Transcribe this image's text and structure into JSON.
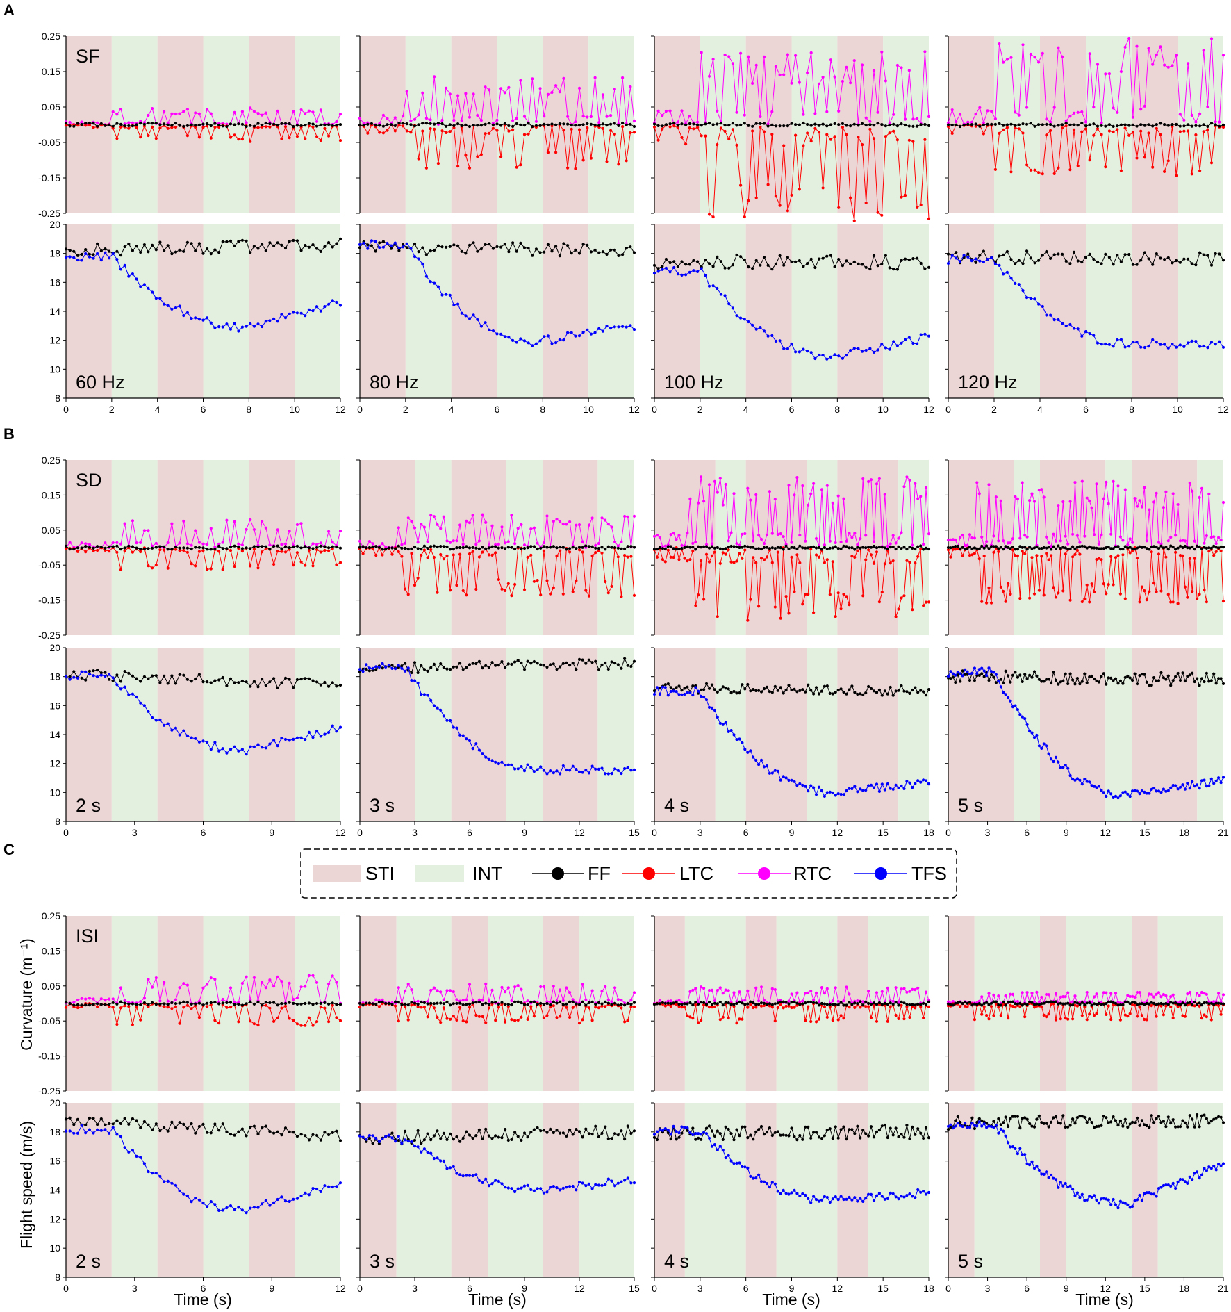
{
  "panels": [
    {
      "letter": "A",
      "row_tag": "SF"
    },
    {
      "letter": "B",
      "row_tag": "SD"
    },
    {
      "letter": "C",
      "row_tag": "ISI"
    }
  ],
  "legend": {
    "items": [
      {
        "label": "STI",
        "kind": "patch",
        "color": "#ecd5d5"
      },
      {
        "label": "INT",
        "kind": "patch",
        "color": "#e3f0df"
      },
      {
        "label": "FF",
        "kind": "line",
        "color": "#000000"
      },
      {
        "label": "LTC",
        "kind": "line",
        "color": "#ff0000"
      },
      {
        "label": "RTC",
        "kind": "line",
        "color": "#ff00ff"
      },
      {
        "label": "TFS",
        "kind": "line",
        "color": "#0000ff"
      }
    ]
  },
  "axis_labels": {
    "curvature": "Curvature (m⁻¹)",
    "speed": "Flight speed (m/s)",
    "time": "Time (s)"
  },
  "chart_data": {
    "type": "line",
    "curvature_ticks": [
      -0.25,
      -0.15,
      -0.05,
      0.05,
      0.15,
      0.25
    ],
    "curvature_tick_labels": [
      "-0.25",
      "-0.15",
      "-0.05",
      "0.05",
      "0.15",
      "0.25"
    ],
    "speed_ticks": [
      8,
      10,
      12,
      14,
      16,
      18,
      20
    ],
    "curvature_ylim": [
      -0.25,
      0.25
    ],
    "speed_ylim": [
      8,
      20
    ],
    "series_colors": {
      "FF": "#000000",
      "LTC": "#ff0000",
      "RTC": "#ff00ff",
      "TFS": "#0000ff"
    },
    "rows": [
      {
        "name": "SF",
        "subplots": [
          {
            "label": "60 Hz",
            "xmax": 12,
            "xticks": [
              0,
              2,
              4,
              6,
              8,
              10,
              12
            ],
            "stimuli": [
              [
                0,
                2
              ],
              [
                4,
                6
              ],
              [
                8,
                10
              ]
            ],
            "amp_rtc": 0.03,
            "amp_ltc": 0.03,
            "ff_start": 18.2,
            "ff_end": 18.6,
            "ff_noise": 0.45,
            "tfs_start": 17.8,
            "tfs_min": 12.9,
            "tfs_end": 14.6,
            "n": 70,
            "seed": 11
          },
          {
            "label": "80 Hz",
            "xmax": 12,
            "xticks": [
              0,
              2,
              4,
              6,
              8,
              10,
              12
            ],
            "stimuli": [
              [
                0,
                2
              ],
              [
                4,
                6
              ],
              [
                8,
                10
              ]
            ],
            "amp_rtc": 0.09,
            "amp_ltc": 0.08,
            "ff_start": 18.4,
            "ff_end": 18.2,
            "ff_noise": 0.45,
            "tfs_start": 18.6,
            "tfs_min": 11.9,
            "tfs_end": 13.0,
            "n": 70,
            "seed": 23
          },
          {
            "label": "100 Hz",
            "xmax": 12,
            "xticks": [
              0,
              2,
              4,
              6,
              8,
              10,
              12
            ],
            "stimuli": [
              [
                0,
                2
              ],
              [
                4,
                6
              ],
              [
                8,
                10
              ]
            ],
            "amp_rtc": 0.13,
            "amp_ltc": 0.17,
            "ff_start": 17.4,
            "ff_end": 17.4,
            "ff_noise": 0.5,
            "tfs_start": 16.8,
            "tfs_min": 10.9,
            "tfs_end": 12.2,
            "n": 70,
            "seed": 37
          },
          {
            "label": "120 Hz",
            "xmax": 12,
            "xticks": [
              0,
              2,
              4,
              6,
              8,
              10,
              12
            ],
            "stimuli": [
              [
                0,
                2
              ],
              [
                4,
                6
              ],
              [
                8,
                10
              ]
            ],
            "amp_rtc": 0.16,
            "amp_ltc": 0.09,
            "ff_start": 17.8,
            "ff_end": 17.6,
            "ff_noise": 0.45,
            "tfs_start": 17.6,
            "tfs_min": 11.8,
            "tfs_end": 11.7,
            "n": 70,
            "seed": 41
          }
        ]
      },
      {
        "name": "SD",
        "subplots": [
          {
            "label": "2 s",
            "xmax": 12,
            "xticks": [
              0,
              3,
              6,
              9,
              12
            ],
            "stimuli": [
              [
                0,
                2
              ],
              [
                4,
                6
              ],
              [
                8,
                10
              ]
            ],
            "amp_rtc": 0.05,
            "amp_ltc": 0.04,
            "ff_start": 18.2,
            "ff_end": 17.4,
            "ff_noise": 0.4,
            "tfs_start": 18.1,
            "tfs_min": 12.9,
            "tfs_end": 14.5,
            "n": 70,
            "seed": 53
          },
          {
            "label": "3 s",
            "xmax": 15,
            "xticks": [
              0,
              3,
              6,
              9,
              12,
              15
            ],
            "stimuli": [
              [
                0,
                3
              ],
              [
                5,
                8
              ],
              [
                10,
                13
              ]
            ],
            "amp_rtc": 0.06,
            "amp_ltc": 0.09,
            "ff_start": 18.6,
            "ff_end": 18.9,
            "ff_noise": 0.4,
            "tfs_start": 18.6,
            "tfs_min": 11.6,
            "tfs_end": 11.5,
            "n": 85,
            "seed": 61
          },
          {
            "label": "4 s",
            "xmax": 18,
            "xticks": [
              0,
              3,
              6,
              9,
              12,
              15,
              18
            ],
            "stimuli": [
              [
                0,
                4
              ],
              [
                6,
                10
              ],
              [
                12,
                16
              ]
            ],
            "amp_rtc": 0.13,
            "amp_ltc": 0.13,
            "ff_start": 17.2,
            "ff_end": 17.0,
            "ff_noise": 0.35,
            "tfs_start": 17.0,
            "tfs_min": 10.0,
            "tfs_end": 10.7,
            "n": 100,
            "seed": 71
          },
          {
            "label": "5 s",
            "xmax": 21,
            "xticks": [
              0,
              3,
              6,
              9,
              12,
              15,
              18,
              21
            ],
            "stimuli": [
              [
                0,
                5
              ],
              [
                7,
                12
              ],
              [
                14,
                19
              ]
            ],
            "amp_rtc": 0.12,
            "amp_ltc": 0.1,
            "ff_start": 18.0,
            "ff_end": 17.8,
            "ff_noise": 0.45,
            "tfs_start": 18.3,
            "tfs_min": 9.8,
            "tfs_end": 10.8,
            "n": 115,
            "seed": 83
          }
        ]
      },
      {
        "name": "ISI",
        "subplots": [
          {
            "label": "2 s",
            "xmax": 12,
            "xticks": [
              0,
              3,
              6,
              9,
              12
            ],
            "stimuli": [
              [
                0,
                2
              ],
              [
                4,
                6
              ],
              [
                8,
                10
              ]
            ],
            "amp_rtc": 0.05,
            "amp_ltc": 0.04,
            "ff_start": 18.8,
            "ff_end": 17.7,
            "ff_noise": 0.4,
            "tfs_start": 18.2,
            "tfs_min": 12.6,
            "tfs_end": 14.3,
            "n": 70,
            "seed": 97
          },
          {
            "label": "3 s",
            "xmax": 15,
            "xticks": [
              0,
              3,
              6,
              9,
              12,
              15
            ],
            "stimuli": [
              [
                0,
                2
              ],
              [
                5,
                7
              ],
              [
                10,
                12
              ]
            ],
            "amp_rtc": 0.035,
            "amp_ltc": 0.035,
            "ff_start": 17.6,
            "ff_end": 18.0,
            "ff_noise": 0.5,
            "tfs_start": 17.5,
            "tfs_min": 14.0,
            "tfs_end": 14.7,
            "n": 85,
            "seed": 103
          },
          {
            "label": "4 s",
            "xmax": 18,
            "xticks": [
              0,
              3,
              6,
              9,
              12,
              15,
              18
            ],
            "stimuli": [
              [
                0,
                2
              ],
              [
                6,
                8
              ],
              [
                12,
                14
              ]
            ],
            "amp_rtc": 0.03,
            "amp_ltc": 0.035,
            "ff_start": 17.9,
            "ff_end": 18.0,
            "ff_noise": 0.5,
            "tfs_start": 18.1,
            "tfs_min": 13.3,
            "tfs_end": 13.8,
            "n": 100,
            "seed": 109
          },
          {
            "label": "5 s",
            "xmax": 21,
            "xticks": [
              0,
              3,
              6,
              9,
              12,
              15,
              18,
              21
            ],
            "stimuli": [
              [
                0,
                2
              ],
              [
                7,
                9
              ],
              [
                14,
                16
              ]
            ],
            "amp_rtc": 0.02,
            "amp_ltc": 0.03,
            "ff_start": 18.6,
            "ff_end": 18.8,
            "ff_noise": 0.45,
            "tfs_start": 18.5,
            "tfs_min": 13.0,
            "tfs_end": 15.8,
            "n": 115,
            "seed": 127
          }
        ]
      }
    ]
  }
}
